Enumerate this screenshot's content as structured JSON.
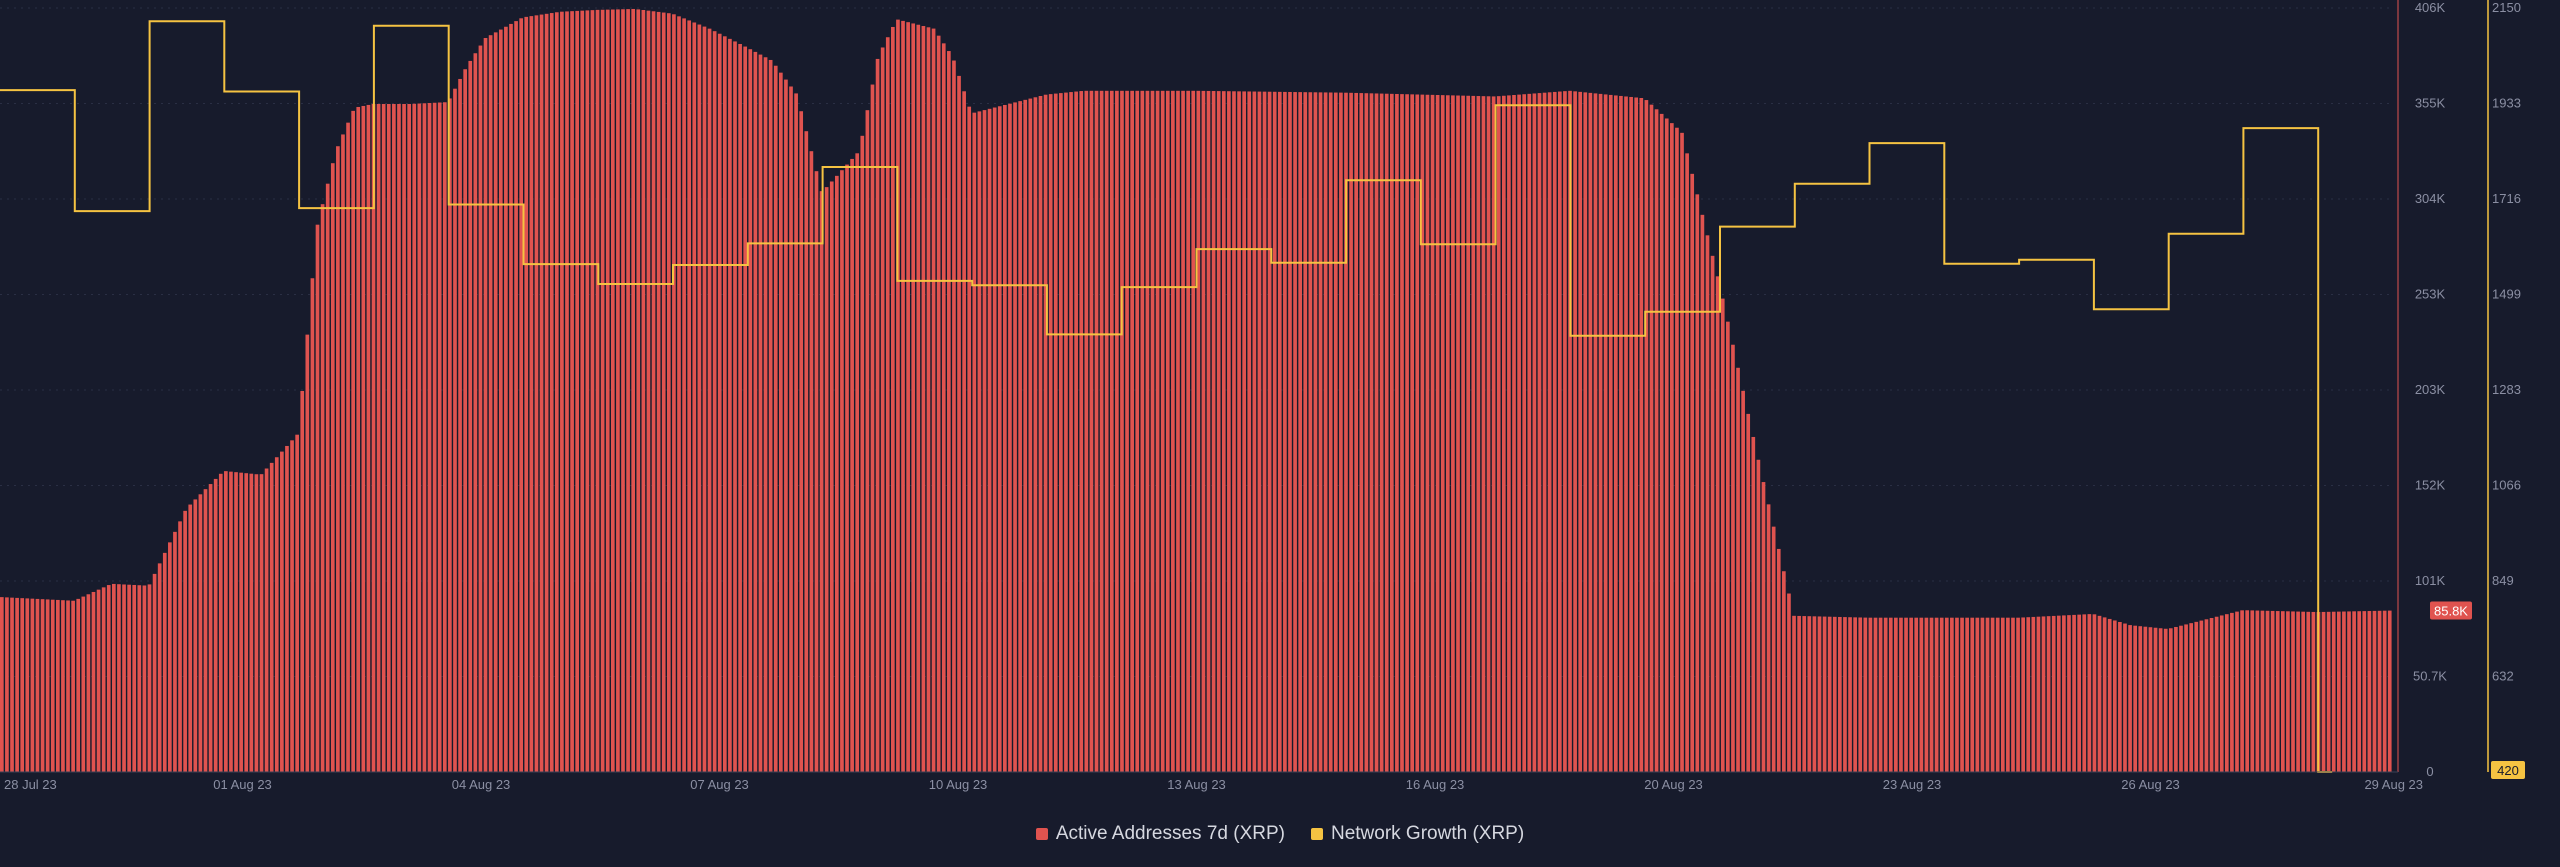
{
  "chart_data": {
    "type": "bar+line",
    "x_range": [
      "2023-07-28",
      "2023-08-29"
    ],
    "x_ticks": [
      "28 Jul 23",
      "01 Aug 23",
      "04 Aug 23",
      "07 Aug 23",
      "10 Aug 23",
      "13 Aug 23",
      "16 Aug 23",
      "20 Aug 23",
      "23 Aug 23",
      "26 Aug 23",
      "29 Aug 23"
    ],
    "left_axis": {
      "ticks": [
        "406K",
        "355K",
        "304K",
        "253K",
        "203K",
        "152K",
        "101K",
        "50.7K",
        "0"
      ],
      "range": [
        0,
        406000
      ],
      "current_value_label": "85.8K",
      "color": "#e0534f"
    },
    "right_axis": {
      "ticks": [
        "2150",
        "1933",
        "1716",
        "1499",
        "1283",
        "1066",
        "849",
        "632"
      ],
      "range": [
        420,
        2150
      ],
      "current_value_label": "420",
      "color": "#f5c342"
    },
    "series": [
      {
        "name": "Active Addresses 7d (XRP)",
        "type": "bar",
        "color": "#e0534f",
        "axis": "left",
        "points": [
          [
            "2023-07-28",
            93000
          ],
          [
            "2023-07-28T12",
            92000
          ],
          [
            "2023-07-29",
            91000
          ],
          [
            "2023-07-29T12",
            100000
          ],
          [
            "2023-07-30",
            99000
          ],
          [
            "2023-07-30T12",
            140000
          ],
          [
            "2023-07-31",
            160000
          ],
          [
            "2023-07-31T12",
            158000
          ],
          [
            "2023-08-01",
            180000
          ],
          [
            "2023-08-01T06",
            290000
          ],
          [
            "2023-08-01T12",
            330000
          ],
          [
            "2023-08-01T18",
            353000
          ],
          [
            "2023-08-02",
            355000
          ],
          [
            "2023-08-02T12",
            355000
          ],
          [
            "2023-08-03",
            356000
          ],
          [
            "2023-08-03T06",
            375000
          ],
          [
            "2023-08-03T12",
            390000
          ],
          [
            "2023-08-04",
            401000
          ],
          [
            "2023-08-04T12",
            404000
          ],
          [
            "2023-08-05",
            405000
          ],
          [
            "2023-08-05T12",
            405500
          ],
          [
            "2023-08-06",
            403000
          ],
          [
            "2023-08-06T12",
            395000
          ],
          [
            "2023-08-07",
            385000
          ],
          [
            "2023-08-07T08",
            378000
          ],
          [
            "2023-08-07T16",
            360000
          ],
          [
            "2023-08-08",
            308000
          ],
          [
            "2023-08-08T12",
            330000
          ],
          [
            "2023-08-08T18",
            380000
          ],
          [
            "2023-08-09",
            400000
          ],
          [
            "2023-08-09T12",
            395000
          ],
          [
            "2023-08-09T18",
            380000
          ],
          [
            "2023-08-10",
            350000
          ],
          [
            "2023-08-10T12",
            355000
          ],
          [
            "2023-08-11",
            360000
          ],
          [
            "2023-08-11T12",
            362000
          ],
          [
            "2023-08-13",
            362000
          ],
          [
            "2023-08-15",
            361000
          ],
          [
            "2023-08-17",
            359000
          ],
          [
            "2023-08-18",
            362000
          ],
          [
            "2023-08-19",
            358000
          ],
          [
            "2023-08-19T12",
            340000
          ],
          [
            "2023-08-20",
            260000
          ],
          [
            "2023-08-20T12",
            170000
          ],
          [
            "2023-08-21",
            83000
          ],
          [
            "2023-08-22",
            82000
          ],
          [
            "2023-08-23",
            82000
          ],
          [
            "2023-08-24",
            82000
          ],
          [
            "2023-08-25",
            84000
          ],
          [
            "2023-08-25T12",
            78000
          ],
          [
            "2023-08-26",
            76000
          ],
          [
            "2023-08-27",
            86000
          ],
          [
            "2023-08-28",
            85000
          ],
          [
            "2023-08-29",
            85800
          ]
        ]
      },
      {
        "name": "Network Growth (XRP)",
        "type": "step-line",
        "color": "#f5c342",
        "axis": "right",
        "points": [
          [
            "2023-07-28",
            1964
          ],
          [
            "2023-07-29",
            1690
          ],
          [
            "2023-07-30",
            2120
          ],
          [
            "2023-07-31",
            1961
          ],
          [
            "2023-08-01",
            1697
          ],
          [
            "2023-08-02",
            2110
          ],
          [
            "2023-08-03",
            1705
          ],
          [
            "2023-08-04",
            1570
          ],
          [
            "2023-08-05",
            1525
          ],
          [
            "2023-08-06",
            1568
          ],
          [
            "2023-08-07",
            1617
          ],
          [
            "2023-08-08",
            1790
          ],
          [
            "2023-08-09",
            1532
          ],
          [
            "2023-08-10",
            1522
          ],
          [
            "2023-08-11",
            1411
          ],
          [
            "2023-08-12",
            1518
          ],
          [
            "2023-08-13",
            1604
          ],
          [
            "2023-08-14",
            1573
          ],
          [
            "2023-08-15",
            1760
          ],
          [
            "2023-08-16",
            1615
          ],
          [
            "2023-08-17",
            1930
          ],
          [
            "2023-08-18",
            1408
          ],
          [
            "2023-08-19",
            1462
          ],
          [
            "2023-08-20",
            1655
          ],
          [
            "2023-08-21",
            1752
          ],
          [
            "2023-08-22",
            1844
          ],
          [
            "2023-08-23",
            1571
          ],
          [
            "2023-08-24",
            1580
          ],
          [
            "2023-08-25",
            1468
          ],
          [
            "2023-08-26",
            1639
          ],
          [
            "2023-08-27",
            1878
          ],
          [
            "2023-08-28",
            420
          ]
        ]
      }
    ],
    "grid": true,
    "legend_position": "bottom-center"
  },
  "legend": {
    "items": [
      {
        "label": "Active Addresses 7d (XRP)",
        "color": "#e0534f"
      },
      {
        "label": "Network Growth (XRP)",
        "color": "#f5c342"
      }
    ]
  }
}
